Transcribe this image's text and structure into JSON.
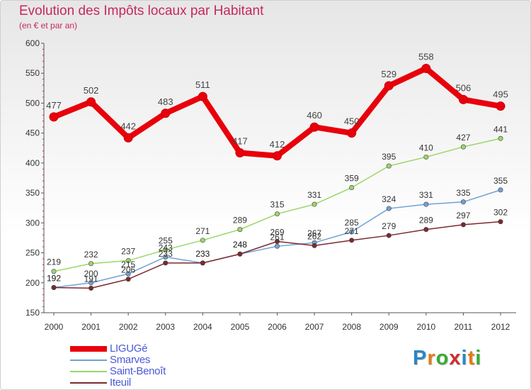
{
  "title": "Evolution des Impôts locaux par Habitant",
  "subtitle": "(en € et par an)",
  "logo": {
    "text": "Proxiti",
    "letter_colors": [
      "#2a86c4",
      "#e07b1a",
      "#3aaa35",
      "#c9302c",
      "#2a86c4",
      "#e07b1a",
      "#3aaa35"
    ]
  },
  "chart_data": {
    "type": "line",
    "x": [
      "2000",
      "2001",
      "2002",
      "2003",
      "2004",
      "2005",
      "2006",
      "2007",
      "2008",
      "2009",
      "2010",
      "2011",
      "2012"
    ],
    "ylim": [
      150,
      600
    ],
    "yticks": [
      150,
      200,
      250,
      300,
      350,
      400,
      450,
      500,
      550,
      600
    ],
    "grid": false,
    "legend_position": "bottom-left",
    "series": [
      {
        "name": "LIGUGé",
        "color": "#e8000b",
        "values": [
          477,
          502,
          442,
          483,
          511,
          417,
          412,
          460,
          450,
          529,
          558,
          506,
          495
        ]
      },
      {
        "name": "Smarves",
        "color": "#6fa2d4",
        "values": [
          192,
          200,
          215,
          243,
          233,
          248,
          261,
          267,
          285,
          324,
          331,
          335,
          355
        ]
      },
      {
        "name": "Saint-Benoît",
        "color": "#9bd66a",
        "values": [
          219,
          232,
          237,
          255,
          271,
          289,
          315,
          331,
          359,
          395,
          410,
          427,
          441
        ]
      },
      {
        "name": "Iteuil",
        "color": "#7a2a2e",
        "values": [
          192,
          191,
          206,
          233,
          233,
          248,
          269,
          262,
          271,
          279,
          289,
          297,
          302
        ]
      }
    ]
  }
}
